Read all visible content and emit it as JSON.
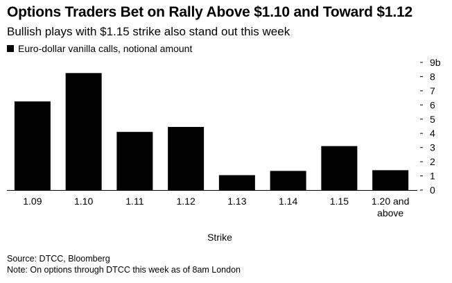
{
  "chart_data": {
    "type": "bar",
    "title": "Options Traders Bet on Rally Above $1.10 and Toward $1.12",
    "subtitle": "Bullish plays with $1.15 strike also stand out this week",
    "legend": [
      "Euro-dollar vanilla calls, notional amount"
    ],
    "categories": [
      "1.09",
      "1.10",
      "1.11",
      "1.12",
      "1.13",
      "1.14",
      "1.15",
      "1.20 and above"
    ],
    "category_lines": [
      [
        "1.09"
      ],
      [
        "1.10"
      ],
      [
        "1.11"
      ],
      [
        "1.12"
      ],
      [
        "1.13"
      ],
      [
        "1.14"
      ],
      [
        "1.15"
      ],
      [
        "1.20 and",
        "above"
      ]
    ],
    "series": [
      {
        "name": "Euro-dollar vanilla calls, notional amount",
        "values": [
          6.25,
          8.25,
          4.1,
          4.45,
          1.05,
          1.35,
          3.1,
          1.4
        ],
        "color": "#000000"
      }
    ],
    "xlabel": "Strike",
    "ylabel": "",
    "ylim": [
      0,
      9
    ],
    "yticks": [
      0,
      1,
      2,
      3,
      4,
      5,
      6,
      7,
      8,
      9
    ],
    "ytick_labels": [
      "0",
      "1",
      "2",
      "3",
      "4",
      "5",
      "6",
      "7",
      "8",
      "9b"
    ],
    "yaxis_side": "right",
    "grid": false
  },
  "footer": {
    "source": "Source: DTCC, Bloomberg",
    "note": "Note: On options through DTCC this week as of 8am London"
  }
}
